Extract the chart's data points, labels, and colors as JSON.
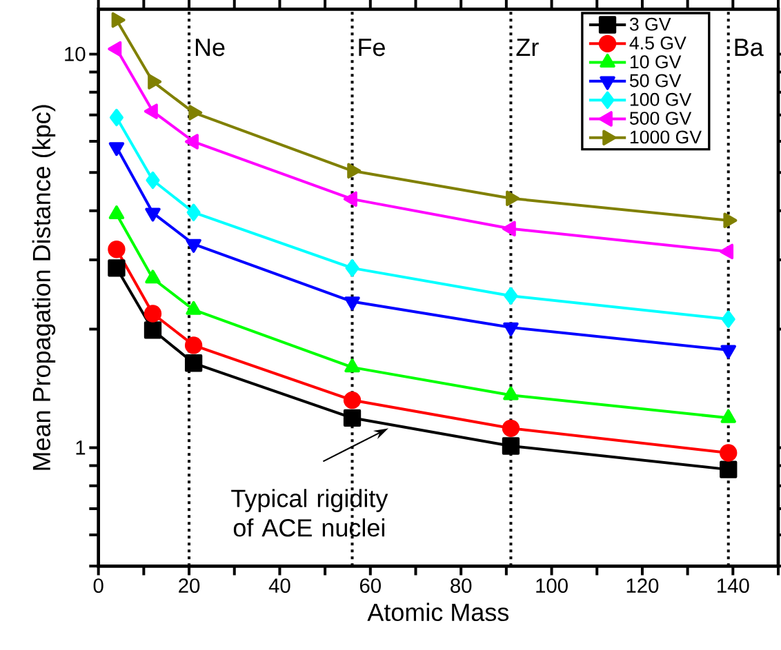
{
  "chart_data": {
    "type": "line",
    "xlabel": "Atomic Mass",
    "ylabel": "Mean Propagation Distance (kpc)",
    "x": [
      4,
      12,
      21,
      56,
      91,
      139
    ],
    "series": [
      {
        "name": "3 GV",
        "color": "#000000",
        "marker": "square",
        "values": [
          2.86,
          1.99,
          1.64,
          1.19,
          1.01,
          0.88
        ]
      },
      {
        "name": "4.5 GV",
        "color": "#ff0000",
        "marker": "circle",
        "values": [
          3.19,
          2.19,
          1.82,
          1.32,
          1.12,
          0.97
        ]
      },
      {
        "name": "10 GV",
        "color": "#00ff00",
        "marker": "triangle",
        "values": [
          3.92,
          2.69,
          2.24,
          1.6,
          1.36,
          1.19
        ]
      },
      {
        "name": "50 GV",
        "color": "#0000ff",
        "marker": "triangle-down",
        "values": [
          5.8,
          3.95,
          3.29,
          2.35,
          2.02,
          1.77
        ]
      },
      {
        "name": "100 GV",
        "color": "#00ffff",
        "marker": "diamond",
        "values": [
          6.9,
          4.78,
          3.96,
          2.86,
          2.43,
          2.12
        ]
      },
      {
        "name": "500 GV",
        "color": "#ff00ff",
        "marker": "triangle-left",
        "values": [
          10.3,
          7.15,
          5.99,
          4.28,
          3.6,
          3.15
        ]
      },
      {
        "name": "1000 GV",
        "color": "#808000",
        "marker": "triangle-right",
        "values": [
          12.2,
          8.51,
          7.1,
          5.05,
          4.3,
          3.78
        ]
      }
    ],
    "xlim": [
      0,
      150
    ],
    "ylim": [
      0.5,
      13
    ],
    "xticks": [
      0,
      {
        "value": 10,
        "label": null
      },
      20,
      {
        "value": 30,
        "label": null
      },
      40,
      {
        "value": 50,
        "label": null
      },
      60,
      {
        "value": 70,
        "label": null
      },
      80,
      {
        "value": 90,
        "label": null
      },
      100,
      {
        "value": 110,
        "label": null
      },
      120,
      {
        "value": 130,
        "label": null
      },
      140,
      {
        "value": 150,
        "label": null
      }
    ],
    "yticks": [
      {
        "value": 0.5,
        "label": null
      },
      {
        "value": 0.6,
        "label": null
      },
      {
        "value": 0.7,
        "label": null
      },
      {
        "value": 0.8,
        "label": null
      },
      {
        "value": 0.9,
        "label": null
      },
      1,
      {
        "value": 2,
        "label": null
      },
      {
        "value": 3,
        "label": null
      },
      {
        "value": 4,
        "label": null
      },
      {
        "value": 5,
        "label": null
      },
      {
        "value": 6,
        "label": null
      },
      {
        "value": 7,
        "label": null
      },
      {
        "value": 8,
        "label": null
      },
      {
        "value": 9,
        "label": null
      },
      10
    ],
    "log": "y",
    "grid": false,
    "legend": "top right",
    "line_style": "solid",
    "ref_lines": [
      {
        "axis": "x",
        "value": 20,
        "label": "Ne",
        "line_style": "dotted",
        "color": "#000000"
      },
      {
        "axis": "x",
        "value": 56,
        "label": "Fe",
        "line_style": "dotted",
        "color": "#000000"
      },
      {
        "axis": "x",
        "value": 91,
        "label": "Zr",
        "line_style": "dotted",
        "color": "#000000"
      },
      {
        "axis": "x",
        "value": 139,
        "label": "Ba",
        "line_style": "dotted",
        "color": "#000000"
      }
    ],
    "annotations": [
      {
        "text": "Typical rigidity of ACE nuclei",
        "x": 64,
        "y": 1.12
      }
    ]
  }
}
